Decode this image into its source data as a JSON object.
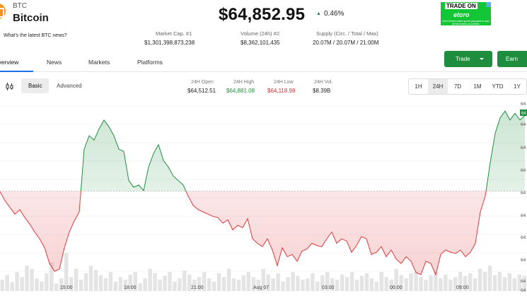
{
  "coin": {
    "ticker": "BTC",
    "name": "Bitcoin",
    "news_prompt": "What's the latest BTC news?",
    "logo_icon": "bitcoin-icon",
    "logo_color": "#f7931a"
  },
  "price": {
    "value": "$64,852.95",
    "change": "0.46%",
    "change_direction": "up",
    "up_color": "#1e8e3e"
  },
  "stats": [
    {
      "label": "Market Cap. #1",
      "value": "$1,301,398,873,238"
    },
    {
      "label": "Volume (24h) #2",
      "value": "$8,362,101,435"
    },
    {
      "label": "Supply (Circ. / Total / Max)",
      "value": "20.07M / 20.07M / 21.00M"
    }
  ],
  "ad": {
    "title": "TRADE ON",
    "brand": "etoro",
    "fine_print": "Don't invest unless you're prepared to lose all the money you invest.",
    "color": "#13c636"
  },
  "nav_tabs": [
    {
      "label": "Overview",
      "active": true
    },
    {
      "label": "News"
    },
    {
      "label": "Markets"
    },
    {
      "label": "Platforms"
    }
  ],
  "actions": {
    "trade_label": "Trade",
    "earn_label": "Earn",
    "button_color": "#1e8e3e"
  },
  "chart_controls": {
    "chart_type_icon": "candlestick-icon",
    "modes": [
      "Basic",
      "Advanced"
    ],
    "active_mode": "Basic",
    "ranges": [
      "1H",
      "24H",
      "7D",
      "1M",
      "YTD",
      "1Y"
    ],
    "active_range": "24H"
  },
  "ohlc": [
    {
      "label": "24H Open",
      "value": "$64,512.51",
      "color": "#222222"
    },
    {
      "label": "24H High",
      "value": "$64,881.08",
      "color": "#1e8e3e"
    },
    {
      "label": "24H Low",
      "value": "$64,118.98",
      "color": "#d32f2f"
    },
    {
      "label": "24H Vol.",
      "value": "$8.39B",
      "color": "#222222"
    }
  ],
  "chart_data": {
    "type": "line",
    "baseline": 64512.51,
    "x_tick_labels": [
      "15:00",
      "18:00",
      "21:00",
      "Aug 07",
      "03:00",
      "06:00",
      "09:00"
    ],
    "y_tick_labels": [
      "64",
      "64",
      "64",
      "64",
      "64",
      "64",
      "64",
      "64",
      "64",
      "64"
    ],
    "current_price_label": "64",
    "up_color": "#1e8e3e",
    "down_color": "#e0393e",
    "price_series": [
      64510,
      64470,
      64440,
      64410,
      64430,
      64395,
      64365,
      64330,
      64300,
      64260,
      64190,
      64155,
      64165,
      64260,
      64330,
      64380,
      64420,
      64700,
      64760,
      64740,
      64790,
      64830,
      64800,
      64760,
      64700,
      64690,
      64560,
      64530,
      64540,
      64515,
      64620,
      64680,
      64720,
      64650,
      64620,
      64580,
      64560,
      64540,
      64490,
      64450,
      64430,
      64420,
      64410,
      64400,
      64395,
      64370,
      64385,
      64340,
      64360,
      64350,
      64390,
      64300,
      64280,
      64265,
      64300,
      64250,
      64180,
      64260,
      64220,
      64230,
      64200,
      64245,
      64255,
      64280,
      64270,
      64265,
      64300,
      64330,
      64280,
      64300,
      64290,
      64240,
      64270,
      64310,
      64300,
      64230,
      64240,
      64265,
      64220,
      64250,
      64210,
      64190,
      64220,
      64200,
      64150,
      64140,
      64200,
      64190,
      64140,
      64230,
      64250,
      64240,
      64235,
      64250,
      64220,
      64240,
      64280,
      64420,
      64490,
      64640,
      64770,
      64840,
      64870,
      64830,
      64860,
      64830,
      64850
    ],
    "volume_series": [
      18,
      25,
      14,
      30,
      22,
      40,
      35,
      20,
      15,
      28,
      45,
      12,
      20,
      60,
      22,
      35,
      18,
      28,
      40,
      33,
      25,
      20,
      30,
      15,
      22,
      18,
      26,
      30,
      12,
      20,
      35,
      28,
      18,
      24,
      30,
      15,
      20,
      32,
      26,
      18,
      22,
      30,
      20,
      15,
      28,
      22,
      35,
      20,
      18,
      25,
      30,
      22,
      18,
      35,
      26,
      20,
      28,
      15,
      22,
      30,
      24,
      18,
      20,
      28,
      15,
      25,
      30,
      20,
      18,
      26,
      22,
      30,
      18,
      24,
      28,
      20,
      15,
      30,
      22,
      18,
      35,
      25,
      20,
      28,
      30,
      22,
      18,
      25,
      30,
      20,
      26,
      18,
      22,
      30,
      24,
      28,
      20,
      35,
      30,
      40,
      25,
      30,
      22,
      28,
      20,
      26,
      24
    ]
  }
}
